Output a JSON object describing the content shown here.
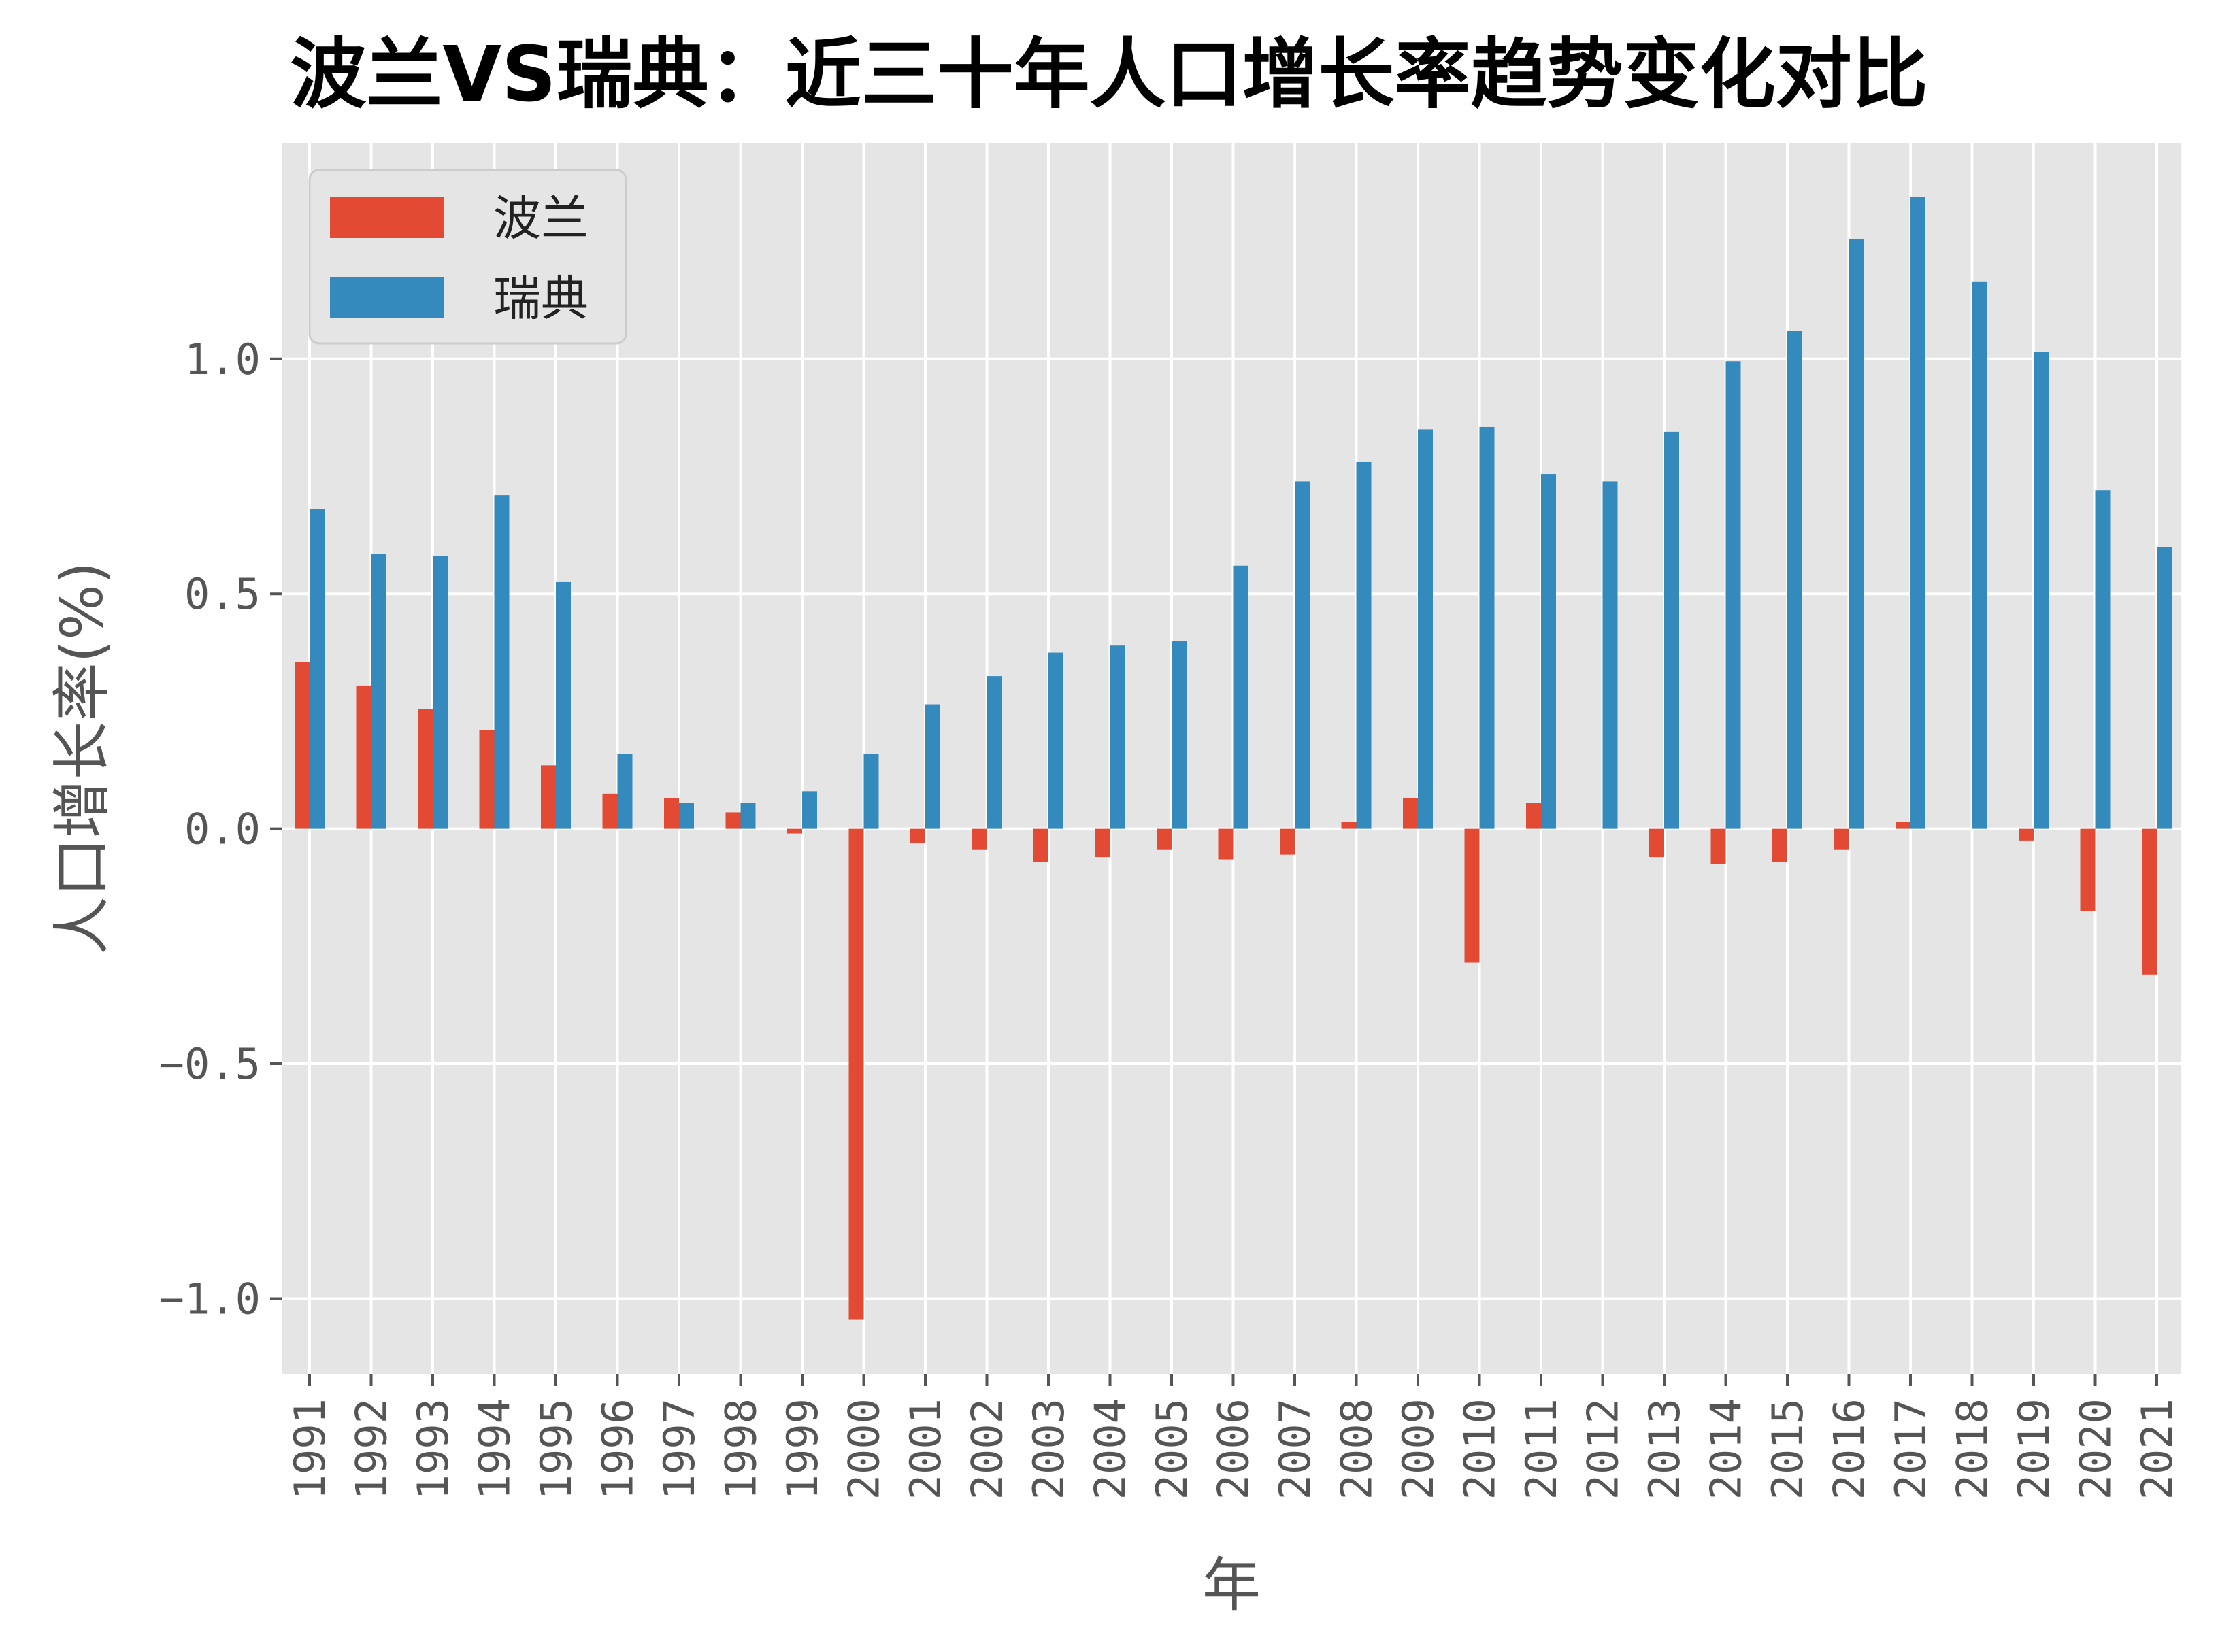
{
  "chart_data": {
    "type": "bar",
    "title": "波兰VS瑞典：近三十年人口增长率趋势变化对比",
    "xlabel": "年",
    "ylabel": "人口增长率(%)",
    "ylim": [
      -1.16,
      1.46
    ],
    "yticks": [
      -1.0,
      -0.5,
      0.0,
      0.5,
      1.0
    ],
    "ytick_labels": [
      "−1.0",
      "−0.5",
      "0.0",
      "0.5",
      "1.0"
    ],
    "grid": true,
    "legend_position": "top-left",
    "categories": [
      "1991",
      "1992",
      "1993",
      "1994",
      "1995",
      "1996",
      "1997",
      "1998",
      "1999",
      "2000",
      "2001",
      "2002",
      "2003",
      "2004",
      "2005",
      "2006",
      "2007",
      "2008",
      "2009",
      "2010",
      "2011",
      "2012",
      "2013",
      "2014",
      "2015",
      "2016",
      "2017",
      "2018",
      "2019",
      "2020",
      "2021"
    ],
    "series": [
      {
        "name": "波兰",
        "color": "#E24A33",
        "values": [
          0.355,
          0.305,
          0.255,
          0.21,
          0.135,
          0.075,
          0.065,
          0.035,
          -0.01,
          -1.045,
          -0.03,
          -0.045,
          -0.07,
          -0.06,
          -0.045,
          -0.065,
          -0.055,
          0.015,
          0.065,
          -0.285,
          0.055,
          0.0,
          -0.06,
          -0.075,
          -0.07,
          -0.045,
          0.015,
          0.0,
          -0.025,
          -0.175,
          -0.31
        ]
      },
      {
        "name": "瑞典",
        "color": "#348ABD",
        "values": [
          0.68,
          0.585,
          0.58,
          0.71,
          0.525,
          0.16,
          0.055,
          0.055,
          0.08,
          0.16,
          0.265,
          0.325,
          0.375,
          0.39,
          0.4,
          0.56,
          0.74,
          0.78,
          0.85,
          0.855,
          0.755,
          0.74,
          0.845,
          0.995,
          1.06,
          1.255,
          1.345,
          1.165,
          1.015,
          0.72,
          0.6
        ]
      }
    ]
  },
  "colors": {
    "plot_background": "#E5E5E5",
    "grid": "#FFFFFF"
  }
}
